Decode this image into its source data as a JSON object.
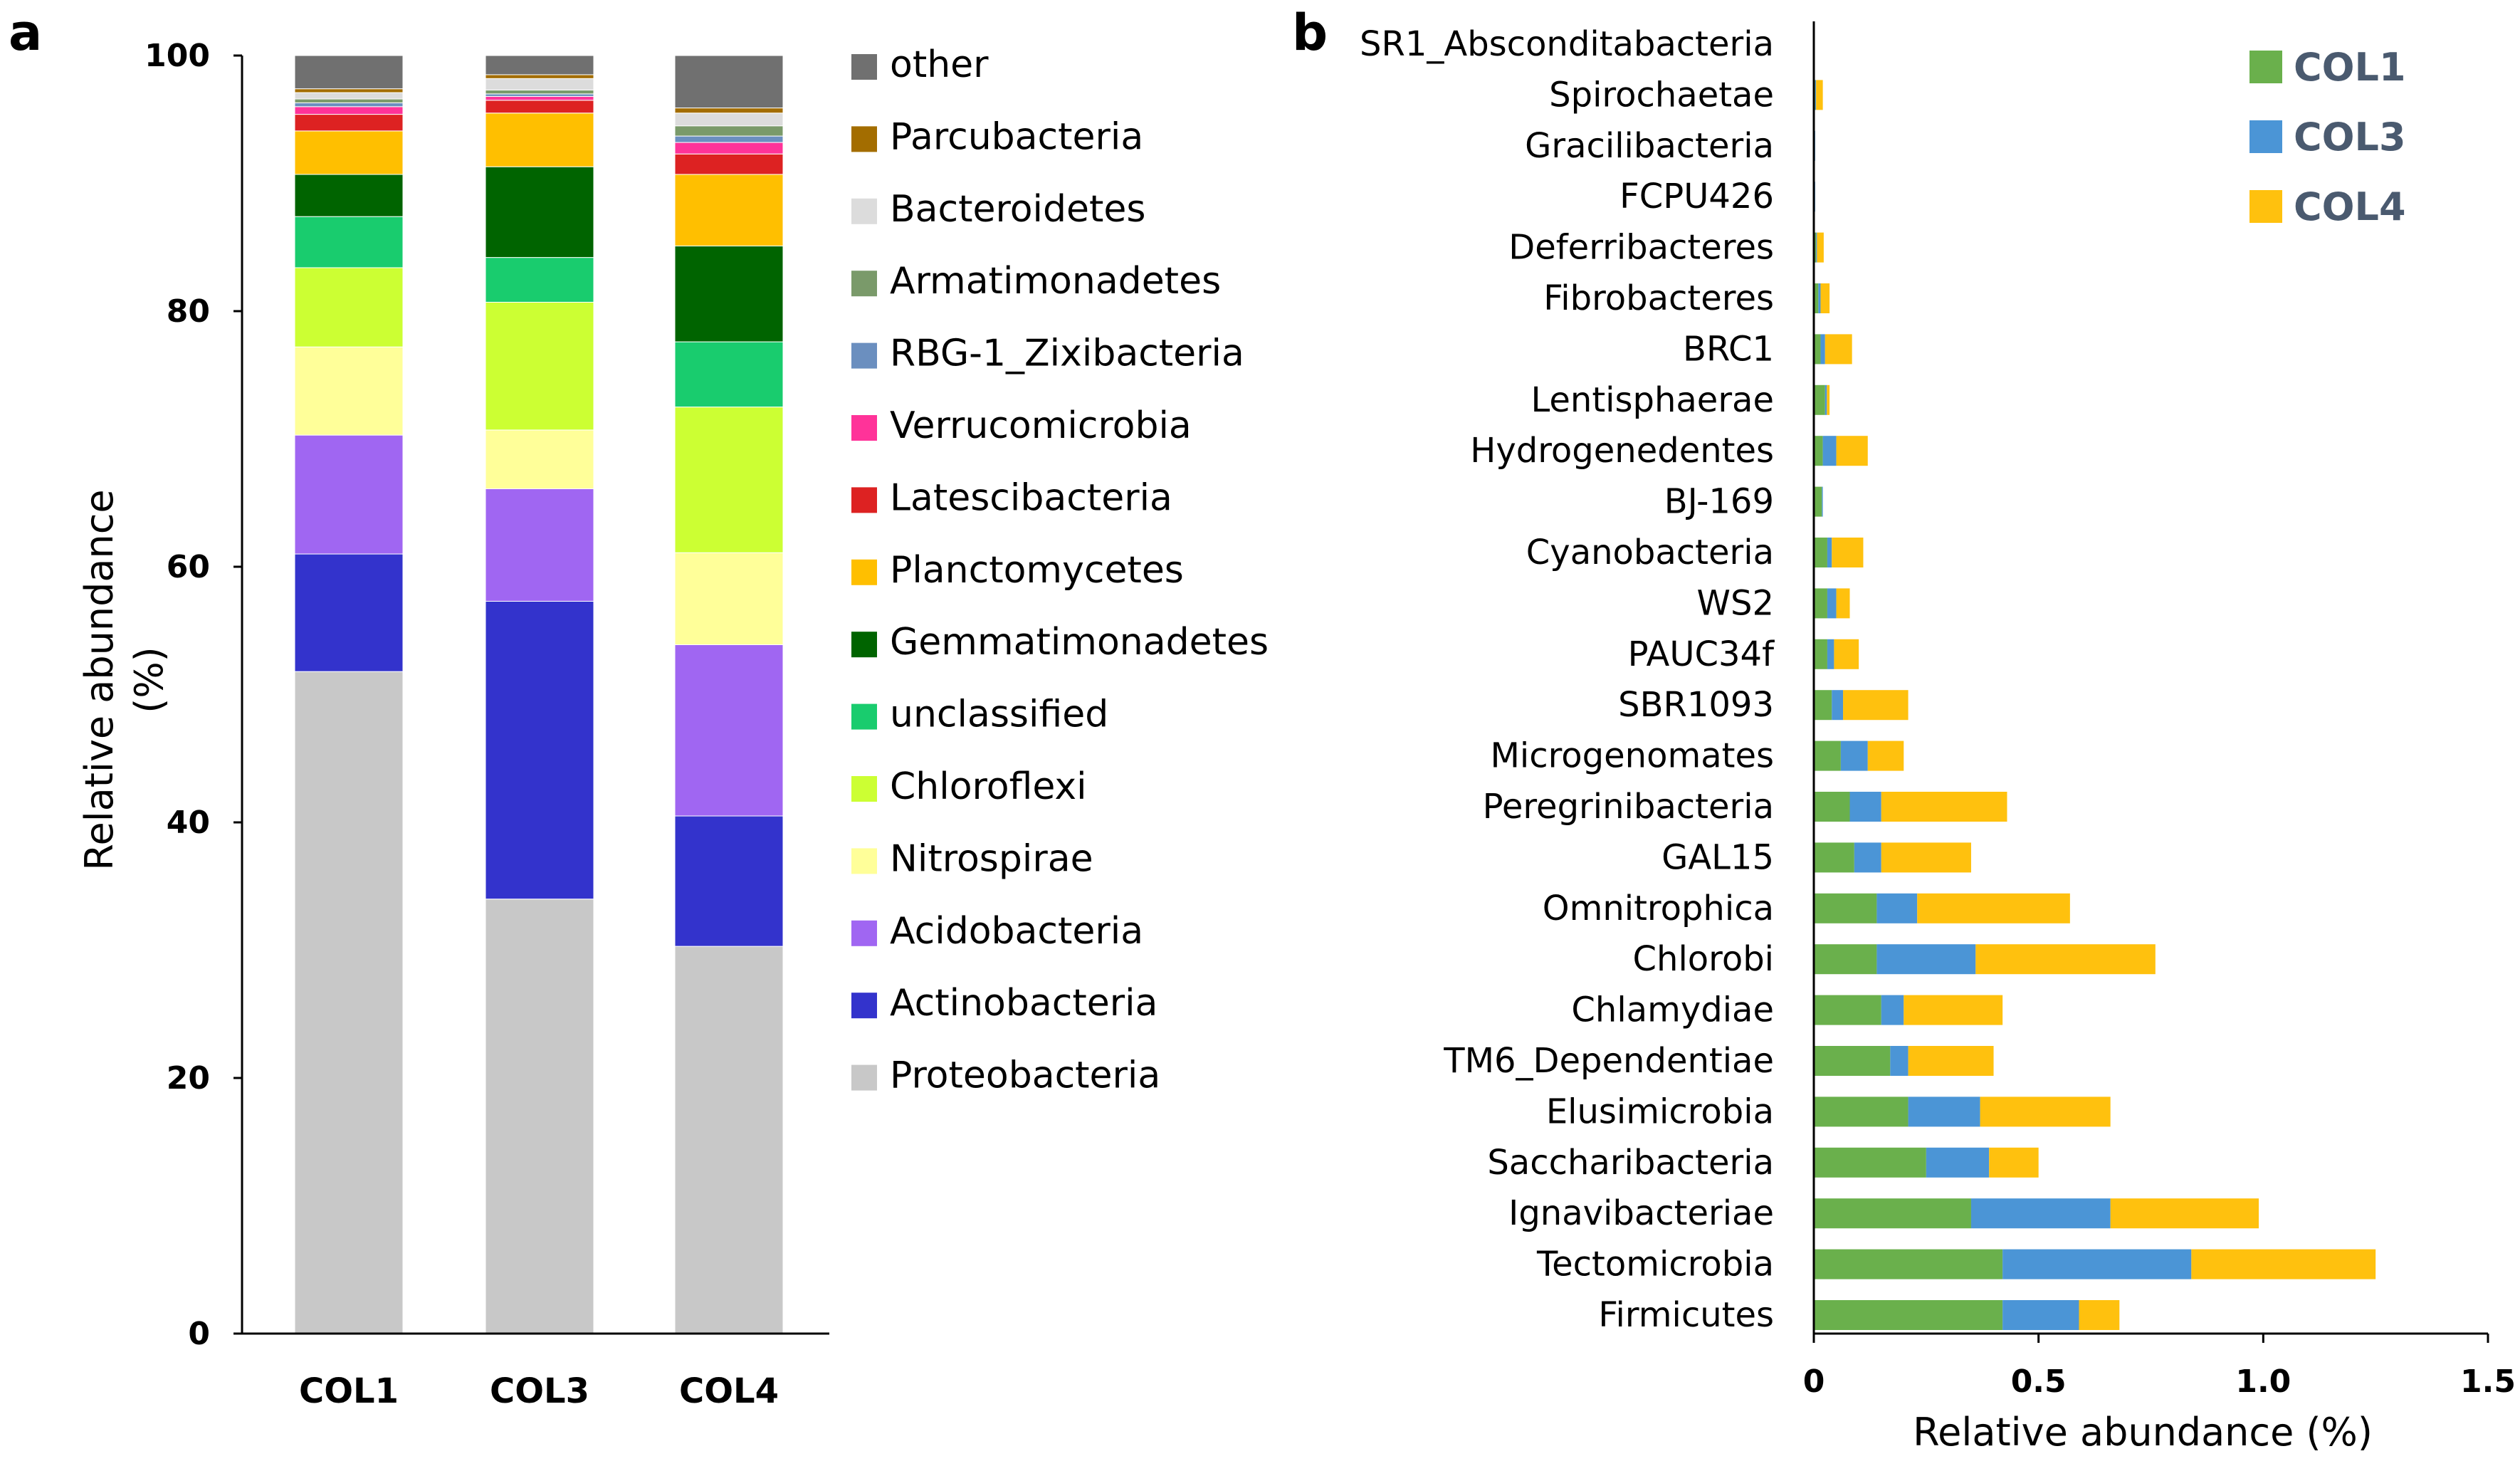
{
  "panels": {
    "a_label": "a",
    "b_label": "b"
  },
  "chart_data": [
    {
      "type": "bar",
      "stacked": true,
      "orientation": "vertical",
      "title": "",
      "xlabel": "",
      "ylabel": "Relative abundance",
      "ylabel_unit": "(%)",
      "ylim": [
        0,
        100
      ],
      "yticks": [
        0,
        20,
        40,
        60,
        80,
        100
      ],
      "categories": [
        "COL1",
        "COL3",
        "COL4"
      ],
      "series": [
        {
          "name": "Proteobacteria",
          "color": "#c8c8c8",
          "values": [
            51.8,
            34.0,
            30.3
          ]
        },
        {
          "name": "Actinobacteria",
          "color": "#3333cc",
          "values": [
            9.2,
            23.3,
            10.2
          ]
        },
        {
          "name": "Acidobacteria",
          "color": "#a066f2",
          "values": [
            9.3,
            8.8,
            13.4
          ]
        },
        {
          "name": "Nitrospirae",
          "color": "#ffff99",
          "values": [
            6.9,
            4.6,
            7.2
          ]
        },
        {
          "name": "Chloroflexi",
          "color": "#ccff33",
          "values": [
            6.2,
            10.0,
            11.4
          ]
        },
        {
          "name": "unclassified",
          "color": "#19cc6e",
          "values": [
            4.0,
            3.5,
            5.1
          ]
        },
        {
          "name": "Gemmatimonadetes",
          "color": "#006400",
          "values": [
            3.3,
            7.1,
            7.5
          ]
        },
        {
          "name": "Planctomycetes",
          "color": "#ffbf00",
          "values": [
            3.4,
            4.2,
            5.6
          ]
        },
        {
          "name": "Latescibacteria",
          "color": "#dd2222",
          "values": [
            1.3,
            1.0,
            1.6
          ]
        },
        {
          "name": "Verrucomicrobia",
          "color": "#ff3399",
          "values": [
            0.6,
            0.3,
            0.9
          ]
        },
        {
          "name": "RBG-1_Zixibacteria",
          "color": "#6b8fbf",
          "values": [
            0.3,
            0.2,
            0.5
          ]
        },
        {
          "name": "Armatimonadetes",
          "color": "#7a9a6a",
          "values": [
            0.3,
            0.3,
            0.8
          ]
        },
        {
          "name": "Bacteroidetes",
          "color": "#dcdcdc",
          "values": [
            0.5,
            0.9,
            1.0
          ]
        },
        {
          "name": "Parcubacteria",
          "color": "#a36d00",
          "values": [
            0.3,
            0.3,
            0.4
          ]
        },
        {
          "name": "other",
          "color": "#707070",
          "values": [
            2.6,
            1.5,
            4.1
          ]
        }
      ]
    },
    {
      "type": "bar",
      "stacked": true,
      "orientation": "horizontal",
      "title": "",
      "xlabel": "Relative abundance (%)",
      "ylabel": "",
      "xlim": [
        0,
        1.5
      ],
      "xticks": [
        "0",
        "0.5",
        "1.0",
        "1.5"
      ],
      "xtick_values": [
        0,
        0.5,
        1.0,
        1.5
      ],
      "categories": [
        "SR1_Absconditabacteria",
        "Spirochaetae",
        "Gracilibacteria",
        "FCPU426",
        "Deferribacteres",
        "Fibrobacteres",
        "BRC1",
        "Lentisphaerae",
        "Hydrogenedentes",
        "BJ-169",
        "Cyanobacteria",
        "WS2",
        "PAUC34f",
        "SBR1093",
        "Microgenomates",
        "Peregrinibacteria",
        "GAL15",
        "Omnitrophica",
        "Chlorobi",
        "Chlamydiae",
        "TM6_Dependentiae",
        "Elusimicrobia",
        "Saccharibacteria",
        "Ignavibacteriae",
        "Tectomicrobia",
        "Firmicutes"
      ],
      "series": [
        {
          "name": "COL1",
          "color": "#6ab04c",
          "values": [
            0.002,
            0.003,
            0.002,
            0.002,
            0.005,
            0.01,
            0.015,
            0.025,
            0.02,
            0.018,
            0.03,
            0.03,
            0.03,
            0.04,
            0.06,
            0.08,
            0.09,
            0.14,
            0.14,
            0.15,
            0.17,
            0.21,
            0.25,
            0.35,
            0.42,
            0.42
          ]
        },
        {
          "name": "COL3",
          "color": "#4b95d6",
          "values": [
            0.0,
            0.002,
            0.001,
            0.001,
            0.002,
            0.005,
            0.01,
            0.004,
            0.03,
            0.002,
            0.01,
            0.02,
            0.015,
            0.025,
            0.06,
            0.07,
            0.06,
            0.09,
            0.22,
            0.05,
            0.04,
            0.16,
            0.14,
            0.31,
            0.42,
            0.17
          ]
        },
        {
          "name": "COL4",
          "color": "#ffc10e",
          "values": [
            0.0,
            0.015,
            0.0,
            0.0,
            0.015,
            0.02,
            0.06,
            0.006,
            0.07,
            0.0,
            0.07,
            0.03,
            0.055,
            0.145,
            0.08,
            0.28,
            0.2,
            0.34,
            0.4,
            0.22,
            0.19,
            0.29,
            0.11,
            0.33,
            0.41,
            0.09
          ]
        }
      ]
    }
  ]
}
